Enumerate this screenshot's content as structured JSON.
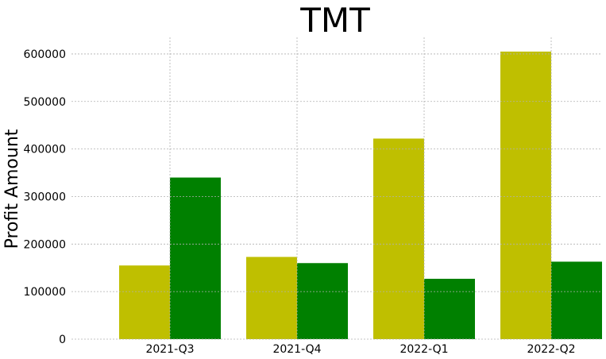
{
  "chart_data": {
    "type": "bar",
    "title": "TMT",
    "xlabel": "",
    "ylabel": "Profit Amount",
    "categories": [
      "2021-Q3",
      "2021-Q4",
      "2022-Q1",
      "2022-Q2"
    ],
    "series": [
      {
        "color": "#bfbf00",
        "values": [
          155000,
          173000,
          422000,
          605000
        ]
      },
      {
        "color": "#008000",
        "values": [
          340000,
          160000,
          127000,
          163000
        ]
      }
    ],
    "ylim": [
      0,
      635000
    ],
    "yticks": [
      0,
      100000,
      200000,
      300000,
      400000,
      500000,
      600000
    ],
    "grid": true,
    "legend": "none"
  }
}
